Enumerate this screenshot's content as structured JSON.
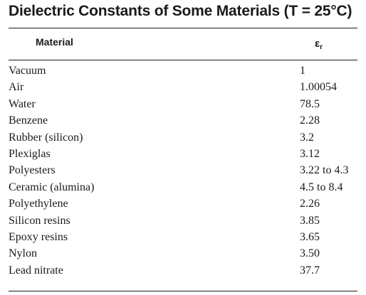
{
  "table": {
    "title": "Dielectric Constants of Some Materials (T = 25°C)",
    "columns": {
      "material": "Material",
      "value_symbol": "ε",
      "value_subscript": "r"
    },
    "rows": [
      {
        "material": "Vacuum",
        "value": "1"
      },
      {
        "material": "Air",
        "value": "1.00054"
      },
      {
        "material": "Water",
        "value": "78.5"
      },
      {
        "material": "Benzene",
        "value": "2.28"
      },
      {
        "material": "Rubber (silicon)",
        "value": "3.2"
      },
      {
        "material": "Plexiglas",
        "value": "3.12"
      },
      {
        "material": "Polyesters",
        "value": "3.22 to 4.3"
      },
      {
        "material": "Ceramic (alumina)",
        "value": "4.5 to 8.4"
      },
      {
        "material": "Polyethylene",
        "value": "2.26"
      },
      {
        "material": "Silicon resins",
        "value": "3.85"
      },
      {
        "material": "Epoxy resins",
        "value": "3.65"
      },
      {
        "material": "Nylon",
        "value": "3.50"
      },
      {
        "material": "Lead nitrate",
        "value": "37.7"
      }
    ]
  }
}
